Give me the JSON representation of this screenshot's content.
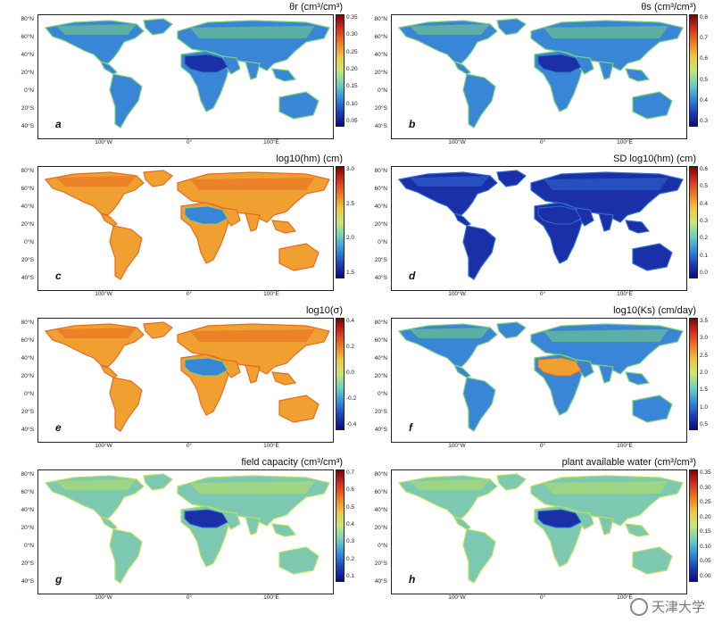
{
  "panels": [
    {
      "id": "a",
      "title": "θr (cm³/cm³)",
      "letter": "a",
      "ticks": [
        "0.35",
        "0.30",
        "0.25",
        "0.20",
        "0.15",
        "0.10",
        "0.05"
      ],
      "palette": "jet",
      "land_level": "low",
      "desert_level": "very-low"
    },
    {
      "id": "b",
      "title": "θs (cm³/cm³)",
      "letter": "b",
      "ticks": [
        "0.8",
        "0.7",
        "0.6",
        "0.5",
        "0.4",
        "0.3"
      ],
      "palette": "jet",
      "land_level": "low",
      "desert_level": "very-low"
    },
    {
      "id": "c",
      "title": "log10(hm) (cm)",
      "letter": "c",
      "ticks": [
        "3.0",
        "2.5",
        "2.0",
        "1.5"
      ],
      "palette": "jet",
      "land_level": "high",
      "desert_level": "low"
    },
    {
      "id": "d",
      "title": "SD log10(hm) (cm)",
      "letter": "d",
      "ticks": [
        "0.6",
        "0.5",
        "0.4",
        "0.3",
        "0.2",
        "0.1",
        "0.0"
      ],
      "palette": "jet",
      "land_level": "very-low",
      "desert_level": "very-low"
    },
    {
      "id": "e",
      "title": "log10(σ)",
      "letter": "e",
      "ticks": [
        "0.4",
        "0.2",
        "0.0",
        "-0.2",
        "-0.4"
      ],
      "palette": "jet",
      "land_level": "high",
      "desert_level": "low"
    },
    {
      "id": "f",
      "title": "log10(Ks) (cm/day)",
      "letter": "f",
      "ticks": [
        "3.5",
        "3.0",
        "2.5",
        "2.0",
        "1.5",
        "1.0",
        "0.5"
      ],
      "palette": "jet",
      "land_level": "low",
      "desert_level": "high"
    },
    {
      "id": "g",
      "title": "field capacity (cm³/cm³)",
      "letter": "g",
      "ticks": [
        "0.7",
        "0.6",
        "0.5",
        "0.4",
        "0.3",
        "0.2",
        "0.1"
      ],
      "palette": "jet",
      "land_level": "mid",
      "desert_level": "very-low"
    },
    {
      "id": "h",
      "title": "plant available water (cm³/cm³)",
      "letter": "h",
      "ticks": [
        "0.35",
        "0.30",
        "0.25",
        "0.20",
        "0.15",
        "0.10",
        "0.05",
        "0.00"
      ],
      "palette": "jet",
      "land_level": "mid",
      "desert_level": "very-low"
    }
  ],
  "lat_labels": [
    "80°N",
    "60°N",
    "40°N",
    "20°N",
    "0°N",
    "20°S",
    "40°S"
  ],
  "lon_labels": [
    "100°W",
    "0°",
    "100°E"
  ],
  "watermark": "天津大学"
}
